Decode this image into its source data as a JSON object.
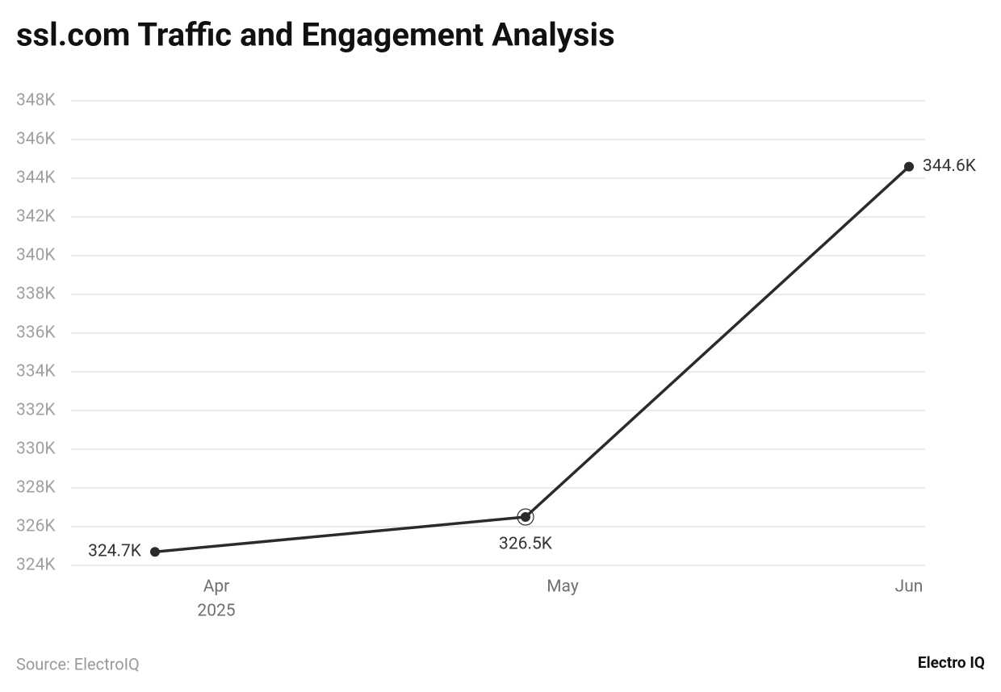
{
  "chart_data": {
    "type": "line",
    "title": "ssl.com Traffic and Engagement Analysis",
    "categories": [
      "Apr",
      "May",
      "Jun"
    ],
    "year_label": "2025",
    "series": [
      {
        "name": "Traffic",
        "color": "#2b2b2b",
        "values": [
          324700,
          326500,
          344600
        ],
        "value_labels": [
          "324.7K",
          "326.5K",
          "344.6K"
        ]
      }
    ],
    "ylim": [
      324000,
      348000
    ],
    "yticks": [
      {
        "value": 324000,
        "label": "324K"
      },
      {
        "value": 326000,
        "label": "326K"
      },
      {
        "value": 328000,
        "label": "328K"
      },
      {
        "value": 330000,
        "label": "330K"
      },
      {
        "value": 332000,
        "label": "332K"
      },
      {
        "value": 334000,
        "label": "334K"
      },
      {
        "value": 336000,
        "label": "336K"
      },
      {
        "value": 338000,
        "label": "338K"
      },
      {
        "value": 340000,
        "label": "340K"
      },
      {
        "value": 342000,
        "label": "342K"
      },
      {
        "value": 344000,
        "label": "344K"
      },
      {
        "value": 346000,
        "label": "346K"
      },
      {
        "value": 348000,
        "label": "348K"
      }
    ],
    "grid": true,
    "source": "Source: ElectroIQ",
    "brand": "Electro IQ"
  }
}
